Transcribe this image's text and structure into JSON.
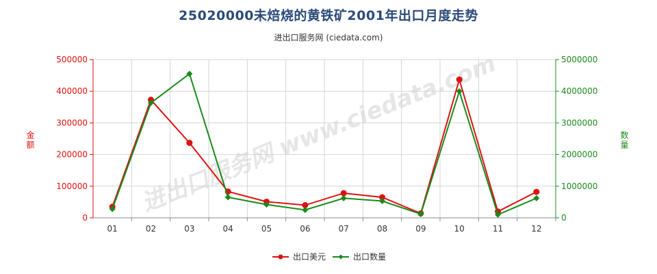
{
  "title": "25020000未焙烧的黄铁矿2001年出口月度走势",
  "subtitle": "进出口服务网 (ciedata.com)",
  "watermark": "进出口服务网 www.ciedata.com",
  "chart_data": {
    "type": "line",
    "categories": [
      "01",
      "02",
      "03",
      "04",
      "05",
      "06",
      "07",
      "08",
      "09",
      "10",
      "11",
      "12"
    ],
    "y_left": {
      "label": "金额",
      "min": 0,
      "max": 500000,
      "ticks": [
        "0",
        "100000",
        "200000",
        "300000",
        "400000",
        "500000"
      ]
    },
    "y_right": {
      "label": "数量",
      "min": 0,
      "max": 5000000,
      "ticks": [
        "0",
        "1000000",
        "2000000",
        "3000000",
        "4000000",
        "5000000"
      ]
    },
    "grid": true,
    "legend_position": "bottom-center",
    "series": [
      {
        "name": "出口美元",
        "axis": "left",
        "color": "#dd1111",
        "values": [
          35000,
          373000,
          237000,
          83000,
          51000,
          40000,
          78000,
          65000,
          14000,
          437000,
          20000,
          82000
        ]
      },
      {
        "name": "出口数量",
        "axis": "right",
        "color": "#1a8a1a",
        "values": [
          280000,
          3630000,
          4550000,
          650000,
          420000,
          250000,
          620000,
          530000,
          120000,
          4000000,
          100000,
          620000
        ]
      }
    ]
  }
}
